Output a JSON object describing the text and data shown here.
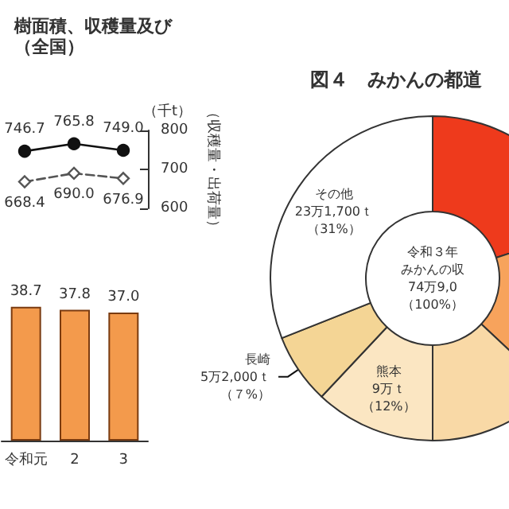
{
  "chart_data": [
    {
      "type": "line",
      "title": "樹面積、収穫量及び",
      "subtitle": "（全国）",
      "ylabel": "（収穫量・出荷量）",
      "annotations": [
        "（千t）"
      ],
      "categories": [
        null,
        null,
        null
      ],
      "series": [
        {
          "color": "#111111",
          "values": [
            746.7,
            765.8,
            749.0
          ],
          "value_labels": [
            "746.7",
            "765.8",
            "749.0"
          ],
          "marker": "circle",
          "line_style": "solid"
        },
        {
          "color": "#555555",
          "values": [
            668.4,
            690.0,
            676.9
          ],
          "value_labels": [
            "668.4",
            "690.0",
            "676.9"
          ],
          "marker": "diamond",
          "line_style": "dashed"
        }
      ],
      "ylim": [
        600,
        800
      ],
      "yticks": [
        600,
        700,
        800
      ],
      "grid": false,
      "legend": false
    },
    {
      "type": "bar",
      "categories": [
        "令和元",
        "2",
        "3"
      ],
      "values": [
        38.7,
        37.8,
        37.0
      ],
      "value_labels": [
        "38.7",
        "37.8",
        "37.0"
      ],
      "color": "#f39a4c",
      "grid": false,
      "legend": false
    },
    {
      "type": "donut",
      "title": "図４　みかんの都道",
      "annotations": [
        "令和３年",
        "みかんの収",
        "74万9,0",
        "（100%）"
      ],
      "categories": [
        null,
        null,
        null,
        "熊本",
        "長崎",
        "その他"
      ],
      "values": [
        20,
        17,
        13,
        12,
        7,
        31
      ],
      "colors": [
        "#ee3a1c",
        "#f7a35c",
        "#f9d9a6",
        "#fbe6c2",
        "#f4d595",
        "#ffffff"
      ],
      "value_labels": [
        null,
        null,
        null,
        "9万ｔ（12%）",
        "5万2,000ｔ（７%）",
        "23万1,700ｔ（31%）"
      ],
      "legend": false
    }
  ]
}
